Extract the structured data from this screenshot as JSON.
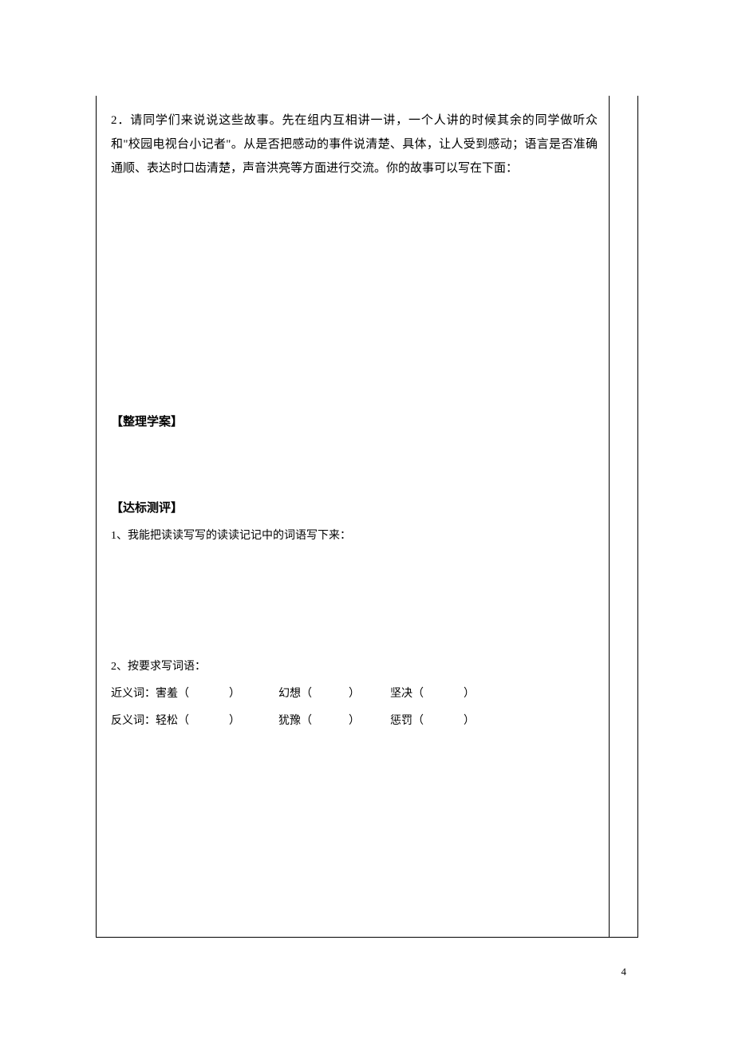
{
  "colors": {
    "background": "#ffffff",
    "text": "#000000",
    "border": "#000000"
  },
  "typography": {
    "body_fontsize": 15,
    "small_fontsize": 14,
    "pagenum_fontsize": 13,
    "font_family": "SimSun",
    "line_height": 2.0
  },
  "paragraph2": {
    "text": "2．请同学们来说说这些故事。先在组内互相讲一讲，一个人讲的时候其余的同学做听众和\"校园电视台小记者\"。从是否把感动的事件说清楚、具体，让人受到感动；语言是否准确通顺、表达时口齿清楚，声音洪亮等方面进行交流。你的故事可以写在下面："
  },
  "section1": {
    "heading": "【整理学案】"
  },
  "section2": {
    "heading": "【达标测评】",
    "q1": "1、我能把读读写写的读读记记中的词语写下来：",
    "q2": "2、按要求写词语：",
    "synonym_label": "近义词：",
    "antonym_label": "反义词：",
    "syn_words": [
      "害羞",
      "幻想",
      "坚决"
    ],
    "ant_words": [
      "轻松",
      "犹豫",
      "惩罚"
    ],
    "paren_open": "（",
    "paren_close": "）"
  },
  "page_number": "4"
}
